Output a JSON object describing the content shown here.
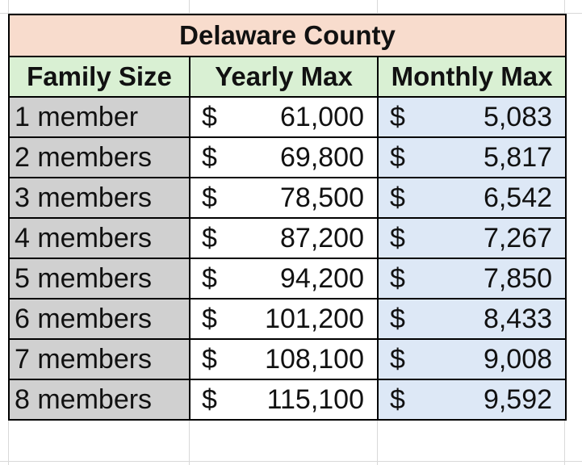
{
  "table": {
    "title": "Delaware County",
    "headers": [
      "Family Size",
      "Yearly Max",
      "Monthly Max"
    ],
    "currency_symbol": "$",
    "rows": [
      {
        "family_size": "1 member",
        "yearly_max": "61,000",
        "monthly_max": "5,083"
      },
      {
        "family_size": "2 members",
        "yearly_max": "69,800",
        "monthly_max": "5,817"
      },
      {
        "family_size": "3 members",
        "yearly_max": "78,500",
        "monthly_max": "6,542"
      },
      {
        "family_size": "4 members",
        "yearly_max": "87,200",
        "monthly_max": "7,267"
      },
      {
        "family_size": "5 members",
        "yearly_max": "94,200",
        "monthly_max": "7,850"
      },
      {
        "family_size": "6 members",
        "yearly_max": "101,200",
        "monthly_max": "8,433"
      },
      {
        "family_size": "7 members",
        "yearly_max": "108,100",
        "monthly_max": "9,008"
      },
      {
        "family_size": "8 members",
        "yearly_max": "115,100",
        "monthly_max": "9,592"
      }
    ]
  },
  "colors": {
    "title_fill": "#f8dccd",
    "header_fill": "#d9f0d3",
    "family_size_fill": "#d0d0d0",
    "monthly_fill": "#dde8f6"
  }
}
